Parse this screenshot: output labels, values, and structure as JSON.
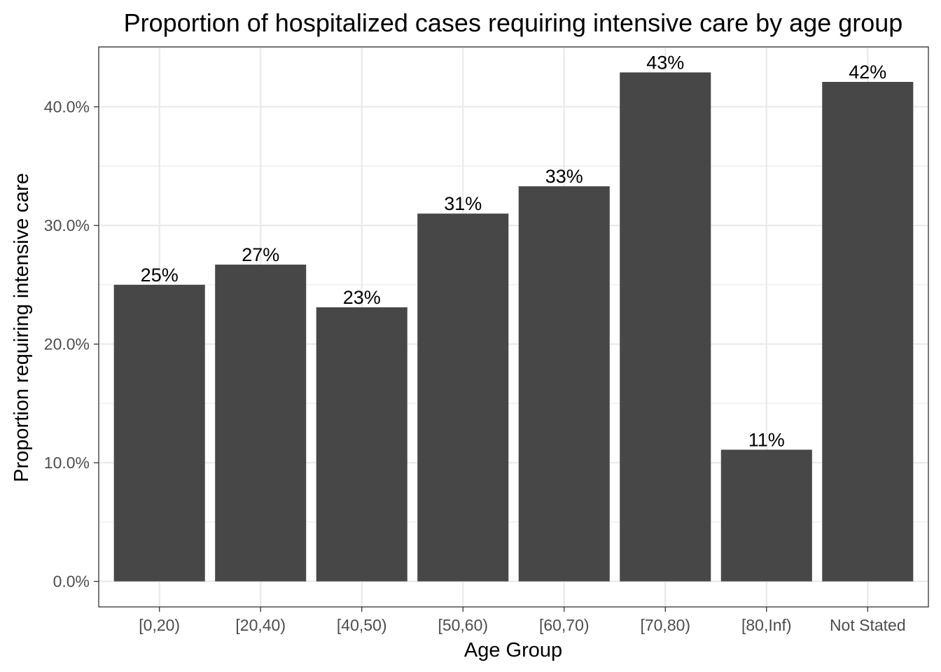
{
  "chart_data": {
    "type": "bar",
    "title": "Proportion of hospitalized cases requiring intensive care by age group",
    "xlabel": "Age Group",
    "ylabel": "Proportion requiring intensive care",
    "categories": [
      "[0,20)",
      "[20,40)",
      "[40,50)",
      "[50,60)",
      "[60,70)",
      "[70,80)",
      "[80,Inf)",
      "Not Stated"
    ],
    "values": [
      0.25,
      0.267,
      0.231,
      0.31,
      0.333,
      0.429,
      0.111,
      0.421
    ],
    "data_labels": [
      "25%",
      "27%",
      "23%",
      "31%",
      "33%",
      "43%",
      "11%",
      "42%"
    ],
    "yticks": [
      0,
      0.1,
      0.2,
      0.3,
      0.4
    ],
    "ytick_labels": [
      "0.0%",
      "10.0%",
      "20.0%",
      "30.0%",
      "40.0%"
    ],
    "ylim": [
      -0.0215,
      0.4505
    ],
    "grid": true,
    "bar_color": "#474747",
    "gridline_color": "#ebebeb",
    "panel_border_color": "#333333"
  }
}
